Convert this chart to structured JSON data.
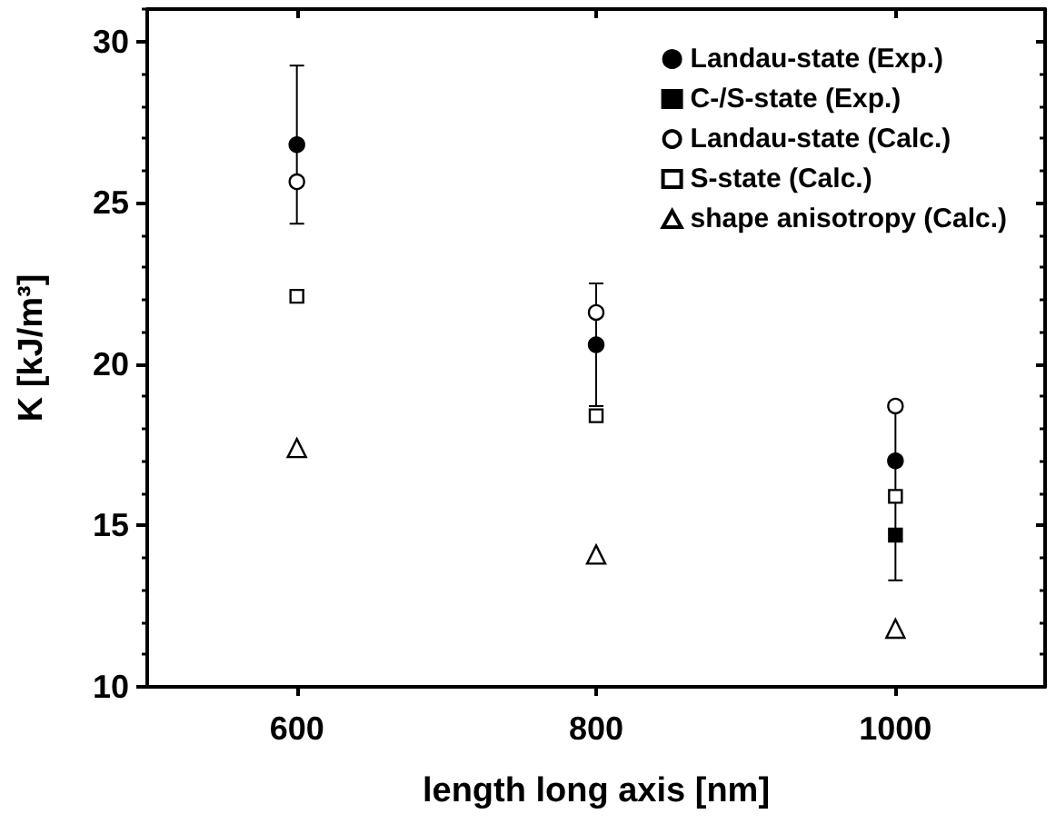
{
  "chart_data": {
    "type": "scatter",
    "xlabel": "length long axis [nm]",
    "ylabel": "K [kJ/m³]",
    "x": [
      600,
      800,
      1000
    ],
    "xlim": [
      500,
      1100
    ],
    "xticks": [
      600,
      800,
      1000
    ],
    "ylim": [
      10,
      31
    ],
    "yticks": [
      10,
      15,
      20,
      25,
      30
    ],
    "grid": false,
    "legend": "top right",
    "series": [
      {
        "name": "Landau-state (Exp.)",
        "color": "#000000",
        "marker": "circle",
        "values": [
          26.8,
          20.6,
          17.0
        ],
        "errors": [
          [
            24.35,
            29.25
          ],
          [
            18.7,
            22.5
          ],
          [
            13.3,
            18.7
          ]
        ]
      },
      {
        "name": "C-/S-state (Exp.)",
        "color": "#000000",
        "marker": "square",
        "values": [
          null,
          null,
          14.7
        ]
      },
      {
        "name": "Landau-state (Calc.)",
        "color": "#000000",
        "marker": "circle",
        "values": [
          25.65,
          21.6,
          18.7
        ]
      },
      {
        "name": "S-state (Calc.)",
        "color": "#000000",
        "marker": "square",
        "values": [
          22.1,
          18.4,
          15.9
        ]
      },
      {
        "name": "shape anisotropy (Calc.)",
        "color": "#000000",
        "marker": "triangle",
        "values": [
          17.4,
          14.1,
          11.8
        ]
      }
    ]
  }
}
